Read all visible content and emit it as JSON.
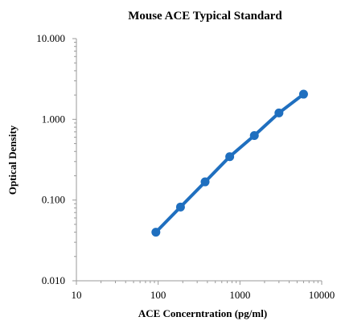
{
  "chart_data": {
    "type": "line",
    "title": "Mouse ACE Typical Standard",
    "xlabel": "ACE Concerntration (pg/ml)",
    "ylabel": "Optical Density",
    "x_scale": "log",
    "y_scale": "log",
    "xlim": [
      10,
      10000
    ],
    "ylim": [
      0.01,
      10
    ],
    "x_ticks": [
      {
        "value": 10,
        "label": "10"
      },
      {
        "value": 100,
        "label": "100"
      },
      {
        "value": 1000,
        "label": "1000"
      },
      {
        "value": 10000,
        "label": "10000"
      }
    ],
    "y_ticks": [
      {
        "value": 0.01,
        "label": "0.010"
      },
      {
        "value": 0.1,
        "label": "0.100"
      },
      {
        "value": 1,
        "label": "1.000"
      },
      {
        "value": 10,
        "label": "10.000"
      }
    ],
    "grid": false,
    "legend": "none",
    "series": [
      {
        "color": "#1f6fbf",
        "points": [
          {
            "x": 93.75,
            "y": 0.04
          },
          {
            "x": 187.5,
            "y": 0.082
          },
          {
            "x": 375,
            "y": 0.168
          },
          {
            "x": 750,
            "y": 0.345
          },
          {
            "x": 1500,
            "y": 0.63
          },
          {
            "x": 3000,
            "y": 1.2
          },
          {
            "x": 6000,
            "y": 2.05
          }
        ]
      }
    ]
  }
}
